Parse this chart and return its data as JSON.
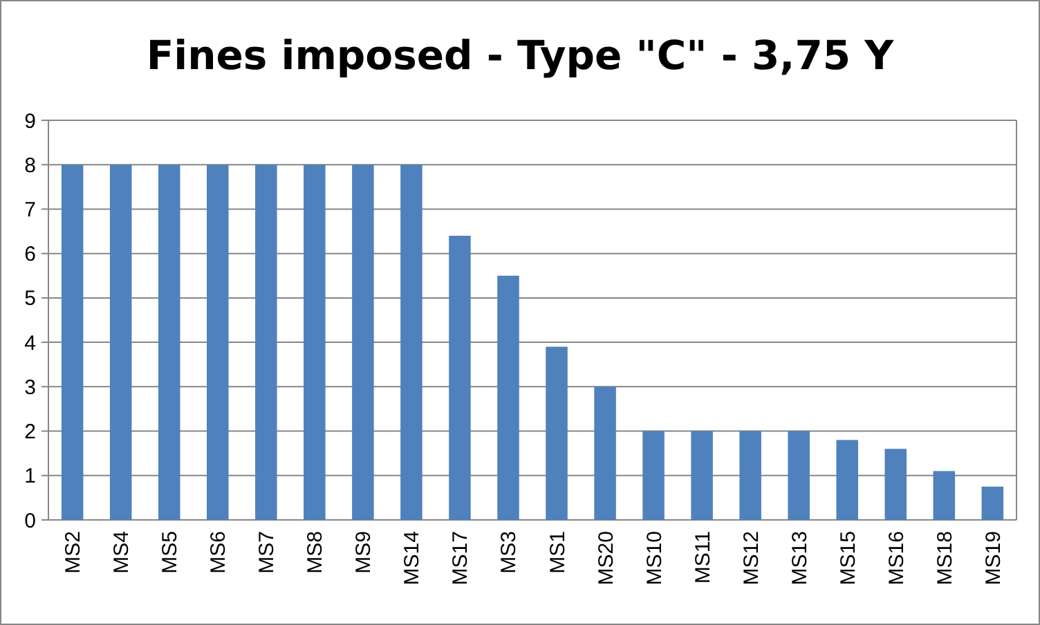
{
  "chart_data": {
    "type": "bar",
    "title": "Fines imposed - Type \"C\" - 3,75 Y",
    "categories": [
      "MS2",
      "MS4",
      "MS5",
      "MS6",
      "MS7",
      "MS8",
      "MS9",
      "MS14",
      "MS17",
      "MS3",
      "MS1",
      "MS20",
      "MS10",
      "MS11",
      "MS12",
      "MS13",
      "MS15",
      "MS16",
      "MS18",
      "MS19"
    ],
    "values": [
      8,
      8,
      8,
      8,
      8,
      8,
      8,
      8,
      6.4,
      5.5,
      3.9,
      3,
      2,
      2,
      2,
      2,
      1.8,
      1.6,
      1.1,
      0.75
    ],
    "color": "#4f81bd",
    "ylim": [
      0,
      9
    ],
    "yticks": [
      0,
      1,
      2,
      3,
      4,
      5,
      6,
      7,
      8,
      9
    ],
    "grid": true
  }
}
